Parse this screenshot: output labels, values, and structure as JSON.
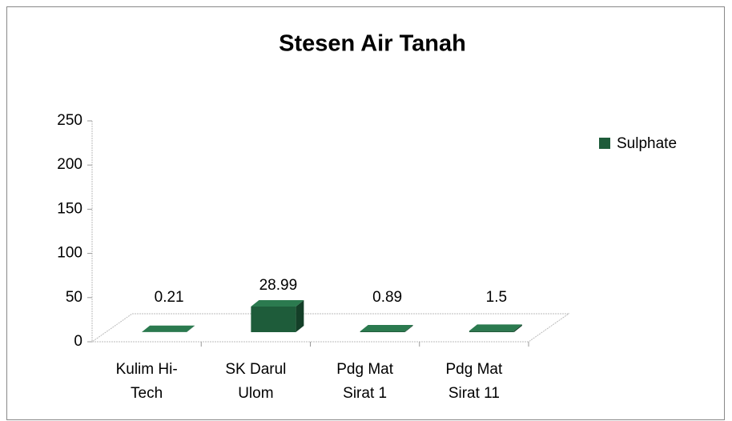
{
  "chart_data": {
    "type": "bar3d",
    "title": "Stesen Air Tanah",
    "categories": [
      "Kulim Hi-Tech",
      "SK Darul Ulom",
      "Pdg Mat Sirat 1",
      "Pdg Mat Sirat 11"
    ],
    "series": [
      {
        "name": "Sulphate",
        "color": "#1e5c3a",
        "values": [
          0.21,
          28.99,
          0.89,
          1.5
        ]
      }
    ],
    "ylim": [
      0,
      250
    ],
    "yticks": [
      0,
      50,
      100,
      150,
      200,
      250
    ],
    "legend": "right"
  }
}
